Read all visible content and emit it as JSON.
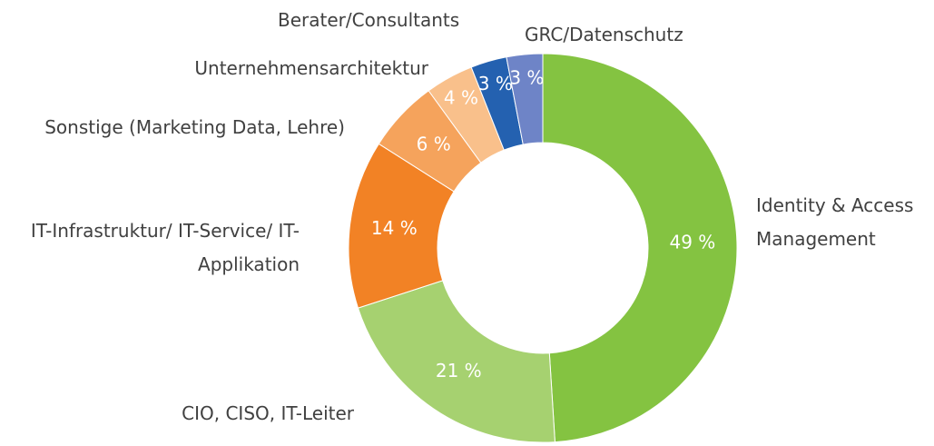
{
  "chart_data": {
    "type": "donut",
    "categories": [
      "Identity & Access Management",
      "CIO, CISO, IT-Leiter",
      "IT-Infrastruktur/ IT-Service/ IT-Applikation",
      "Sonstige (Marketing Data, Lehre)",
      "Unternehmensarchitektur",
      "Berater/Consultants",
      "GRC/Datenschutz"
    ],
    "values": [
      49,
      21,
      14,
      6,
      4,
      3,
      3
    ],
    "value_labels": [
      "49 %",
      "21 %",
      "14 %",
      "6 %",
      "4 %",
      "3 %",
      "3 %"
    ],
    "colors": [
      "#84c341",
      "#a6d170",
      "#f28225",
      "#f5a35c",
      "#f9c08b",
      "#2461b0",
      "#6e84c7"
    ]
  }
}
